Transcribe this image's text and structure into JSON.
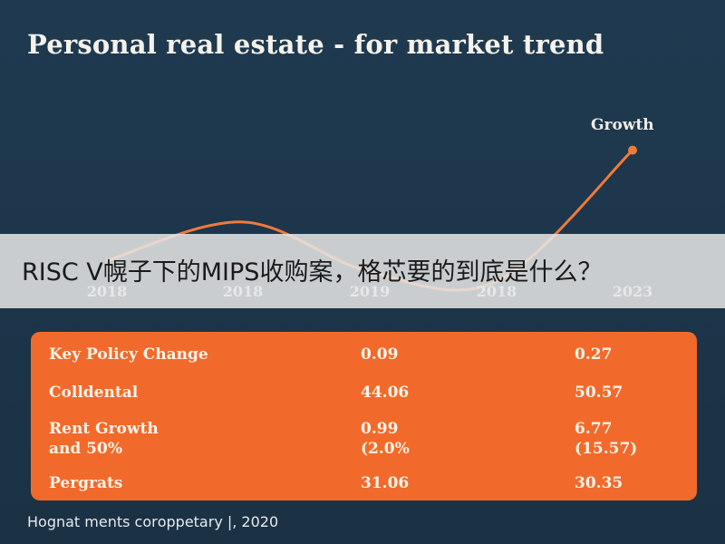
{
  "title": "Personal real estate - for market trend",
  "banner_text": "RISC V幌子下的MIPS收购案，格芯要的到底是什么？",
  "footer": "Hognat ments corорpetary |, 2020",
  "colors": {
    "background": "#1d3347",
    "line": "#f07a3a",
    "table_fill": "#f26a2b",
    "text_light": "#f5f2ec"
  },
  "chart_data": {
    "type": "line",
    "title": "Personal real estate - for market trend",
    "categories": [
      "2018",
      "2018",
      "2019",
      "2018",
      "2023"
    ],
    "series": [
      {
        "name": "",
        "values": [
          0.2,
          0.48,
          0.12,
          0.05,
          1.0
        ]
      }
    ],
    "annotations": [
      {
        "text": "Growth",
        "at_category_index": 4
      }
    ],
    "ylim": [
      0,
      1.05
    ],
    "grid": false,
    "legend": "none"
  },
  "table": {
    "rows": [
      {
        "label": [
          "Key Policy Change"
        ],
        "v1": [
          "0.09"
        ],
        "v2": [
          "0.27"
        ]
      },
      {
        "label": [
          "Colldental"
        ],
        "v1": [
          "44.06"
        ],
        "v2": [
          "50.57"
        ]
      },
      {
        "label": [
          "Rent Growth",
          "and 50%"
        ],
        "v1": [
          "0.99",
          "(2.0%"
        ],
        "v2": [
          "6.77",
          "(15.57)"
        ]
      },
      {
        "label": [
          "Pergrats"
        ],
        "v1": [
          "31.06"
        ],
        "v2": [
          "30.35"
        ]
      }
    ]
  }
}
